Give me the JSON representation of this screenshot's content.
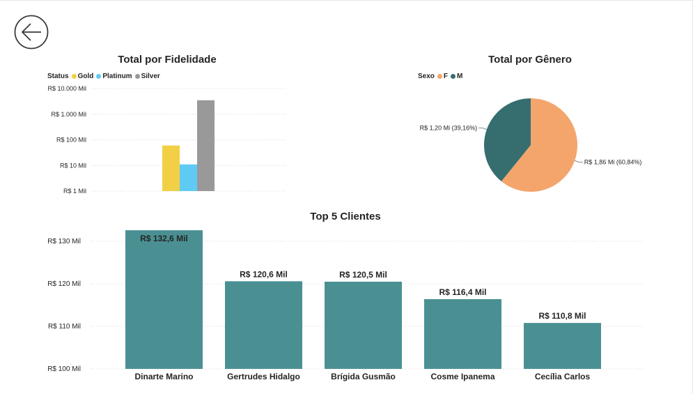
{
  "page": {
    "back_button_icon": "arrow-left-circle-icon"
  },
  "colors": {
    "gold": "#F2D045",
    "platinum": "#5FCBF5",
    "silver": "#999999",
    "female": "#F4A56B",
    "male": "#366E70",
    "teal": "#4A9093",
    "grid": "#d0d0d0"
  },
  "fidelidade": {
    "title": "Total por Fidelidade",
    "legend_title": "Status",
    "y_ticks": [
      "R$ 10.000 Mil",
      "R$ 1.000 Mil",
      "R$ 100 Mil",
      "R$ 10 Mil",
      "R$ 1 Mil"
    ]
  },
  "genero": {
    "title": "Total por Gênero",
    "legend_title": "Sexo"
  },
  "top5": {
    "title": "Top 5 Clientes",
    "y_ticks": [
      "R$ 130 Mil",
      "R$ 120 Mil",
      "R$ 110 Mil",
      "R$ 100 Mil"
    ]
  },
  "chart_data": [
    {
      "type": "bar",
      "title": "Total por Fidelidade",
      "legend_title": "Status",
      "y_scale": "log",
      "ylim": [
        1,
        10000
      ],
      "y_unit": "R$ Mil",
      "series": [
        {
          "name": "Gold",
          "value": 60,
          "color": "#F2D045"
        },
        {
          "name": "Platinum",
          "value": 11,
          "color": "#5FCBF5"
        },
        {
          "name": "Silver",
          "value": 3500,
          "color": "#999999"
        }
      ],
      "grid": true,
      "legend_position": "top-left"
    },
    {
      "type": "pie",
      "title": "Total por Gênero",
      "legend_title": "Sexo",
      "slices": [
        {
          "name": "F",
          "value": 1.86,
          "percent": 60.84,
          "label": "R$ 1,86 Mi (60,84%)",
          "color": "#F4A56B"
        },
        {
          "name": "M",
          "value": 1.2,
          "percent": 39.16,
          "label": "R$ 1,20 Mi (39,16%)",
          "color": "#366E70"
        }
      ],
      "legend_position": "top-left"
    },
    {
      "type": "bar",
      "title": "Top 5 Clientes",
      "ylim": [
        100,
        133
      ],
      "y_unit": "R$ Mil",
      "categories": [
        "Dinarte Marino",
        "Gertrudes Hidalgo",
        "Brígida Gusmão",
        "Cosme Ipanema",
        "Cecília Carlos"
      ],
      "values": [
        132.6,
        120.6,
        120.5,
        116.4,
        110.8
      ],
      "value_labels": [
        "R$ 132,6 Mil",
        "R$ 120,6 Mil",
        "R$ 120,5 Mil",
        "R$ 116,4 Mil",
        "R$ 110,8 Mil"
      ],
      "color": "#4A9093",
      "grid": true
    }
  ]
}
